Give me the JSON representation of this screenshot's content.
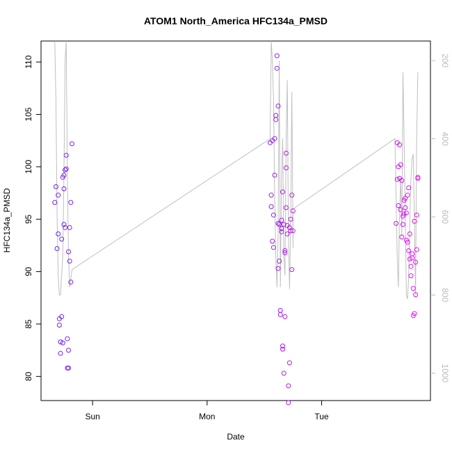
{
  "chart_data": {
    "type": "scatter",
    "title": "ATOM1 North_America HFC134a_PMSD",
    "xlabel": "Date",
    "ylabel": "HFC134a_PMSD",
    "x_ticks": [
      "Sun",
      "Mon",
      "Tue"
    ],
    "x_tick_days": [
      1,
      2,
      3
    ],
    "xlim_days": [
      0.55,
      3.95
    ],
    "ylim": [
      77.7,
      112.0
    ],
    "y_ticks": [
      80,
      85,
      90,
      95,
      100,
      105,
      110
    ],
    "y2_ticks": [
      200,
      400,
      600,
      800,
      1000
    ],
    "y2lim": [
      1070,
      150
    ],
    "grid": false,
    "colors": {
      "points_start": "#6622ee",
      "points_end": "#ee11ee",
      "trace": "#bfbfbf",
      "right_axis": "#bbbbbb"
    },
    "series": [
      {
        "values_by_flight": [
          {
            "day": [
              0.67,
              0.68,
              0.69,
              0.7,
              0.7,
              0.71,
              0.71,
              0.72,
              0.72,
              0.73,
              0.73,
              0.74,
              0.74,
              0.75,
              0.75,
              0.75,
              0.76,
              0.76,
              0.77,
              0.77,
              0.78,
              0.78,
              0.79,
              0.79,
              0.79,
              0.8,
              0.8,
              0.81,
              0.81,
              0.82
            ],
            "value": [
              96.6,
              98.1,
              92.2,
              93.6,
              97.3,
              85.5,
              84.9,
              82.2,
              83.3,
              93.1,
              85.7,
              83.2,
              99.0,
              94.5,
              97.9,
              99.2,
              99.7,
              94.2,
              99.8,
              101.1,
              83.6,
              80.8,
              80.8,
              82.5,
              91.9,
              94.2,
              91.0,
              89.0,
              96.6,
              102.2
            ]
          },
          {
            "day": [
              2.55,
              2.56,
              2.56,
              2.57,
              2.57,
              2.58,
              2.58,
              2.59,
              2.59,
              2.6,
              2.6,
              2.61,
              2.61,
              2.62,
              2.62,
              2.62,
              2.63,
              2.63,
              2.64,
              2.64,
              2.65,
              2.65,
              2.65,
              2.66,
              2.66,
              2.66,
              2.67,
              2.67,
              2.68,
              2.68,
              2.68,
              2.69,
              2.69,
              2.69,
              2.7,
              2.7,
              2.71,
              2.71,
              2.72,
              2.72,
              2.73,
              2.73,
              2.74,
              2.74,
              2.75,
              2.75
            ],
            "value": [
              102.3,
              96.2,
              97.3,
              92.9,
              102.5,
              95.4,
              92.3,
              99.2,
              102.7,
              104.9,
              104.5,
              110.6,
              109.4,
              105.8,
              94.6,
              90.3,
              94.5,
              91.0,
              86.3,
              85.9,
              93.8,
              94.9,
              94.1,
              82.9,
              82.6,
              97.6,
              94.5,
              80.3,
              85.7,
              91.8,
              92.0,
              96.1,
              99.9,
              101.3,
              93.6,
              94.4,
              77.5,
              79.1,
              81.3,
              94.2,
              93.9,
              95.0,
              97.3,
              90.2,
              95.8,
              93.9
            ]
          },
          {
            "day": [
              3.65,
              3.66,
              3.66,
              3.67,
              3.67,
              3.68,
              3.68,
              3.69,
              3.69,
              3.7,
              3.7,
              3.71,
              3.71,
              3.72,
              3.72,
              3.73,
              3.73,
              3.74,
              3.74,
              3.75,
              3.75,
              3.76,
              3.76,
              3.77,
              3.77,
              3.78,
              3.78,
              3.79,
              3.79,
              3.8,
              3.8,
              3.81,
              3.81,
              3.82,
              3.82,
              3.83,
              3.83,
              3.84,
              3.84
            ],
            "value": [
              94.6,
              98.8,
              102.3,
              96.3,
              100.0,
              102.1,
              98.9,
              95.9,
              100.2,
              93.3,
              98.7,
              95.3,
              94.5,
              96.8,
              95.5,
              97.0,
              96.1,
              95.6,
              93.0,
              92.8,
              97.3,
              98.0,
              92.0,
              91.2,
              93.6,
              90.5,
              89.6,
              91.3,
              91.7,
              88.4,
              85.8,
              94.8,
              86.0,
              87.8,
              90.9,
              92.1,
              95.4,
              98.9,
              99.0
            ]
          }
        ]
      }
    ],
    "trace_series": {
      "axis": "right",
      "points": [
        [
          0.67,
          150
        ],
        [
          0.68,
          300
        ],
        [
          0.69,
          600
        ],
        [
          0.7,
          750
        ],
        [
          0.71,
          800
        ],
        [
          0.72,
          800
        ],
        [
          0.74,
          700
        ],
        [
          0.75,
          500
        ],
        [
          0.76,
          200
        ],
        [
          0.77,
          150
        ],
        [
          0.78,
          500
        ],
        [
          0.79,
          700
        ],
        [
          0.8,
          780
        ],
        [
          0.81,
          760
        ],
        [
          0.82,
          735
        ],
        [
          2.55,
          400
        ],
        [
          2.56,
          150
        ],
        [
          2.57,
          200
        ],
        [
          2.58,
          300
        ],
        [
          2.59,
          550
        ],
        [
          2.6,
          700
        ],
        [
          2.61,
          780
        ],
        [
          2.62,
          650
        ],
        [
          2.63,
          200
        ],
        [
          2.64,
          780
        ],
        [
          2.65,
          500
        ],
        [
          2.66,
          400
        ],
        [
          2.67,
          700
        ],
        [
          2.68,
          750
        ],
        [
          2.69,
          400
        ],
        [
          2.7,
          250
        ],
        [
          2.71,
          650
        ],
        [
          2.72,
          785
        ],
        [
          2.73,
          600
        ],
        [
          2.74,
          280
        ],
        [
          2.75,
          680
        ],
        [
          2.75,
          580
        ],
        [
          3.64,
          400
        ],
        [
          3.65,
          550
        ],
        [
          3.66,
          700
        ],
        [
          3.67,
          780
        ],
        [
          3.68,
          600
        ],
        [
          3.69,
          500
        ],
        [
          3.7,
          650
        ],
        [
          3.71,
          230
        ],
        [
          3.72,
          400
        ],
        [
          3.73,
          600
        ],
        [
          3.74,
          800
        ],
        [
          3.75,
          810
        ],
        [
          3.76,
          750
        ],
        [
          3.77,
          600
        ],
        [
          3.78,
          500
        ],
        [
          3.79,
          450
        ],
        [
          3.8,
          440
        ],
        [
          3.81,
          600
        ],
        [
          3.82,
          800
        ],
        [
          3.83,
          400
        ],
        [
          3.84,
          230
        ]
      ]
    }
  }
}
